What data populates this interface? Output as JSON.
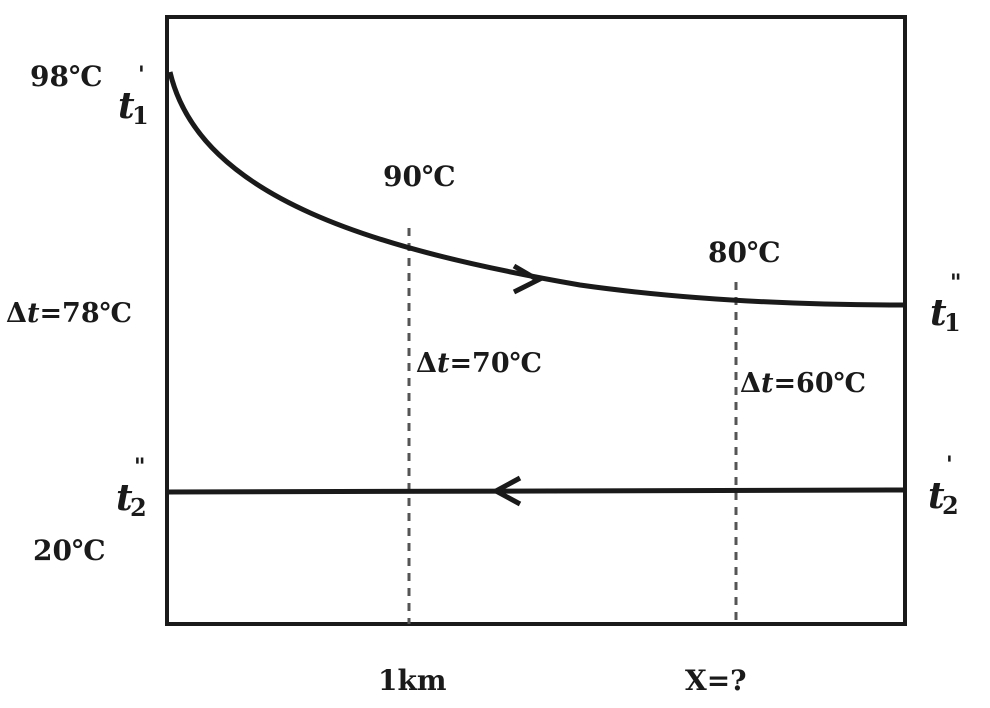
{
  "labels": {
    "t1_in_temp": "98℃",
    "t1_in_symbol": "t",
    "t1_in_sub": "1",
    "t1_in_mark": "'",
    "t1_out_symbol": "t",
    "t1_out_sub": "1",
    "t1_out_mark": "\"",
    "t2_out_symbol": "t",
    "t2_out_sub": "2",
    "t2_out_mark": "\"",
    "t2_out_temp": "20℃",
    "t2_in_symbol": "t",
    "t2_in_sub": "2",
    "t2_in_mark": "'",
    "dt_left_delta": "Δ",
    "dt_left_t": "t",
    "dt_left_value": "=78℃",
    "temp_at_1km": "90℃",
    "dt_mid_delta": "Δ",
    "dt_mid_t": "t",
    "dt_mid_value": "=70℃",
    "temp_at_x": "80℃",
    "dt_right_delta": "Δ",
    "dt_right_t": "t",
    "dt_right_value": "=60℃",
    "x_tick_1": "1km",
    "x_tick_2": "X=?"
  },
  "colors": {
    "ink": "#1a1a1a",
    "background": "#ffffff",
    "dashed": "#555555"
  }
}
